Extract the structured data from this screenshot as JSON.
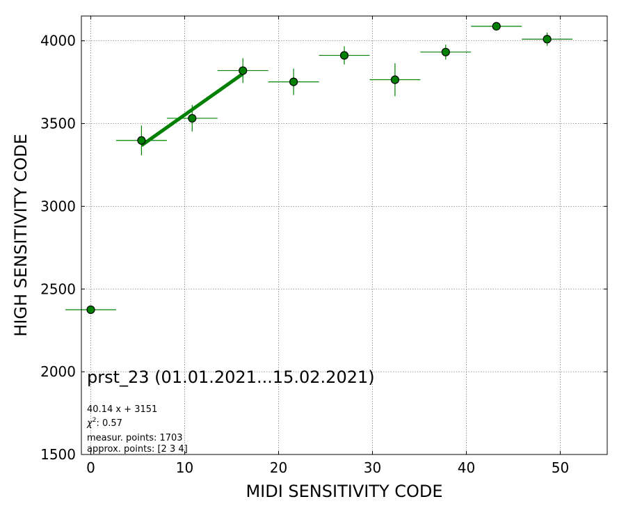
{
  "chart_data": {
    "type": "scatter",
    "title": "",
    "xlabel": "MIDI SENSITIVITY CODE",
    "ylabel": "HIGH SENSITIVITY CODE",
    "xlim": [
      -1,
      55
    ],
    "ylim": [
      1500,
      4150
    ],
    "xticks": [
      0,
      10,
      20,
      30,
      40,
      50
    ],
    "yticks": [
      1500,
      2000,
      2500,
      3000,
      3500,
      4000
    ],
    "grid": true,
    "colors": {
      "marker": "#008000",
      "edge": "#000000",
      "fit": "#008000",
      "grid": "#808080"
    },
    "points": [
      {
        "x": 0.0,
        "y": 2375,
        "xerr": 2.7,
        "yerr": 0
      },
      {
        "x": 5.4,
        "y": 3398,
        "xerr": 2.7,
        "yerr": 90
      },
      {
        "x": 10.8,
        "y": 3532,
        "xerr": 2.7,
        "yerr": 80
      },
      {
        "x": 16.2,
        "y": 3820,
        "xerr": 2.7,
        "yerr": 75
      },
      {
        "x": 21.6,
        "y": 3752,
        "xerr": 2.7,
        "yerr": 80
      },
      {
        "x": 27.0,
        "y": 3912,
        "xerr": 2.7,
        "yerr": 55
      },
      {
        "x": 32.4,
        "y": 3765,
        "xerr": 2.7,
        "yerr": 100
      },
      {
        "x": 37.8,
        "y": 3932,
        "xerr": 2.7,
        "yerr": 45
      },
      {
        "x": 43.2,
        "y": 4088,
        "xerr": 2.7,
        "yerr": 0
      },
      {
        "x": 48.6,
        "y": 4010,
        "xerr": 2.7,
        "yerr": 40
      }
    ],
    "fit": {
      "slope": 40.14,
      "intercept": 3151,
      "x_range": [
        5.4,
        16.2
      ]
    },
    "annotations": {
      "title": "prst_23 (01.01.2021...15.02.2021)",
      "equation": "40.14 x + 3151",
      "chi2_symbol": "χ",
      "chi2_exp": "2",
      "chi2_value": ": 0.57",
      "measur_points": "measur. points: 1703",
      "approx_points": "approx. points: [2 3 4]"
    }
  }
}
